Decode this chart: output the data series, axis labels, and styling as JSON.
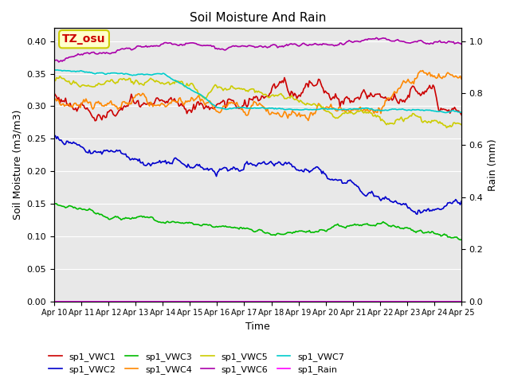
{
  "title": "Soil Moisture And Rain",
  "xlabel": "Time",
  "ylabel_left": "Soil Moisture (m3/m3)",
  "ylabel_right": "Rain (mm)",
  "ylim_left": [
    0.0,
    0.42
  ],
  "ylim_right": [
    0.0,
    1.05
  ],
  "yticks_left": [
    0.0,
    0.05,
    0.1,
    0.15,
    0.2,
    0.25,
    0.3,
    0.35,
    0.4
  ],
  "yticks_right": [
    0.0,
    0.2,
    0.4,
    0.6,
    0.8,
    1.0
  ],
  "xtick_labels": [
    "Apr 10",
    "Apr 11",
    "Apr 12",
    "Apr 13",
    "Apr 14",
    "Apr 15",
    "Apr 16",
    "Apr 17",
    "Apr 18",
    "Apr 19",
    "Apr 20",
    "Apr 21",
    "Apr 22",
    "Apr 23",
    "Apr 24",
    "Apr 25"
  ],
  "bg_color": "#e8e8e8",
  "fig_bg_color": "#ffffff",
  "series_colors": {
    "sp1_VWC1": "#cc0000",
    "sp1_VWC2": "#0000cc",
    "sp1_VWC3": "#00bb00",
    "sp1_VWC4": "#ff8800",
    "sp1_VWC5": "#cccc00",
    "sp1_VWC6": "#aa00aa",
    "sp1_VWC7": "#00cccc",
    "sp1_Rain": "#ff00ff"
  },
  "label_box": {
    "text": "TZ_osu",
    "bg": "#ffffcc",
    "edge": "#cccc00",
    "text_color": "#cc0000",
    "fontsize": 10,
    "fontweight": "bold"
  }
}
